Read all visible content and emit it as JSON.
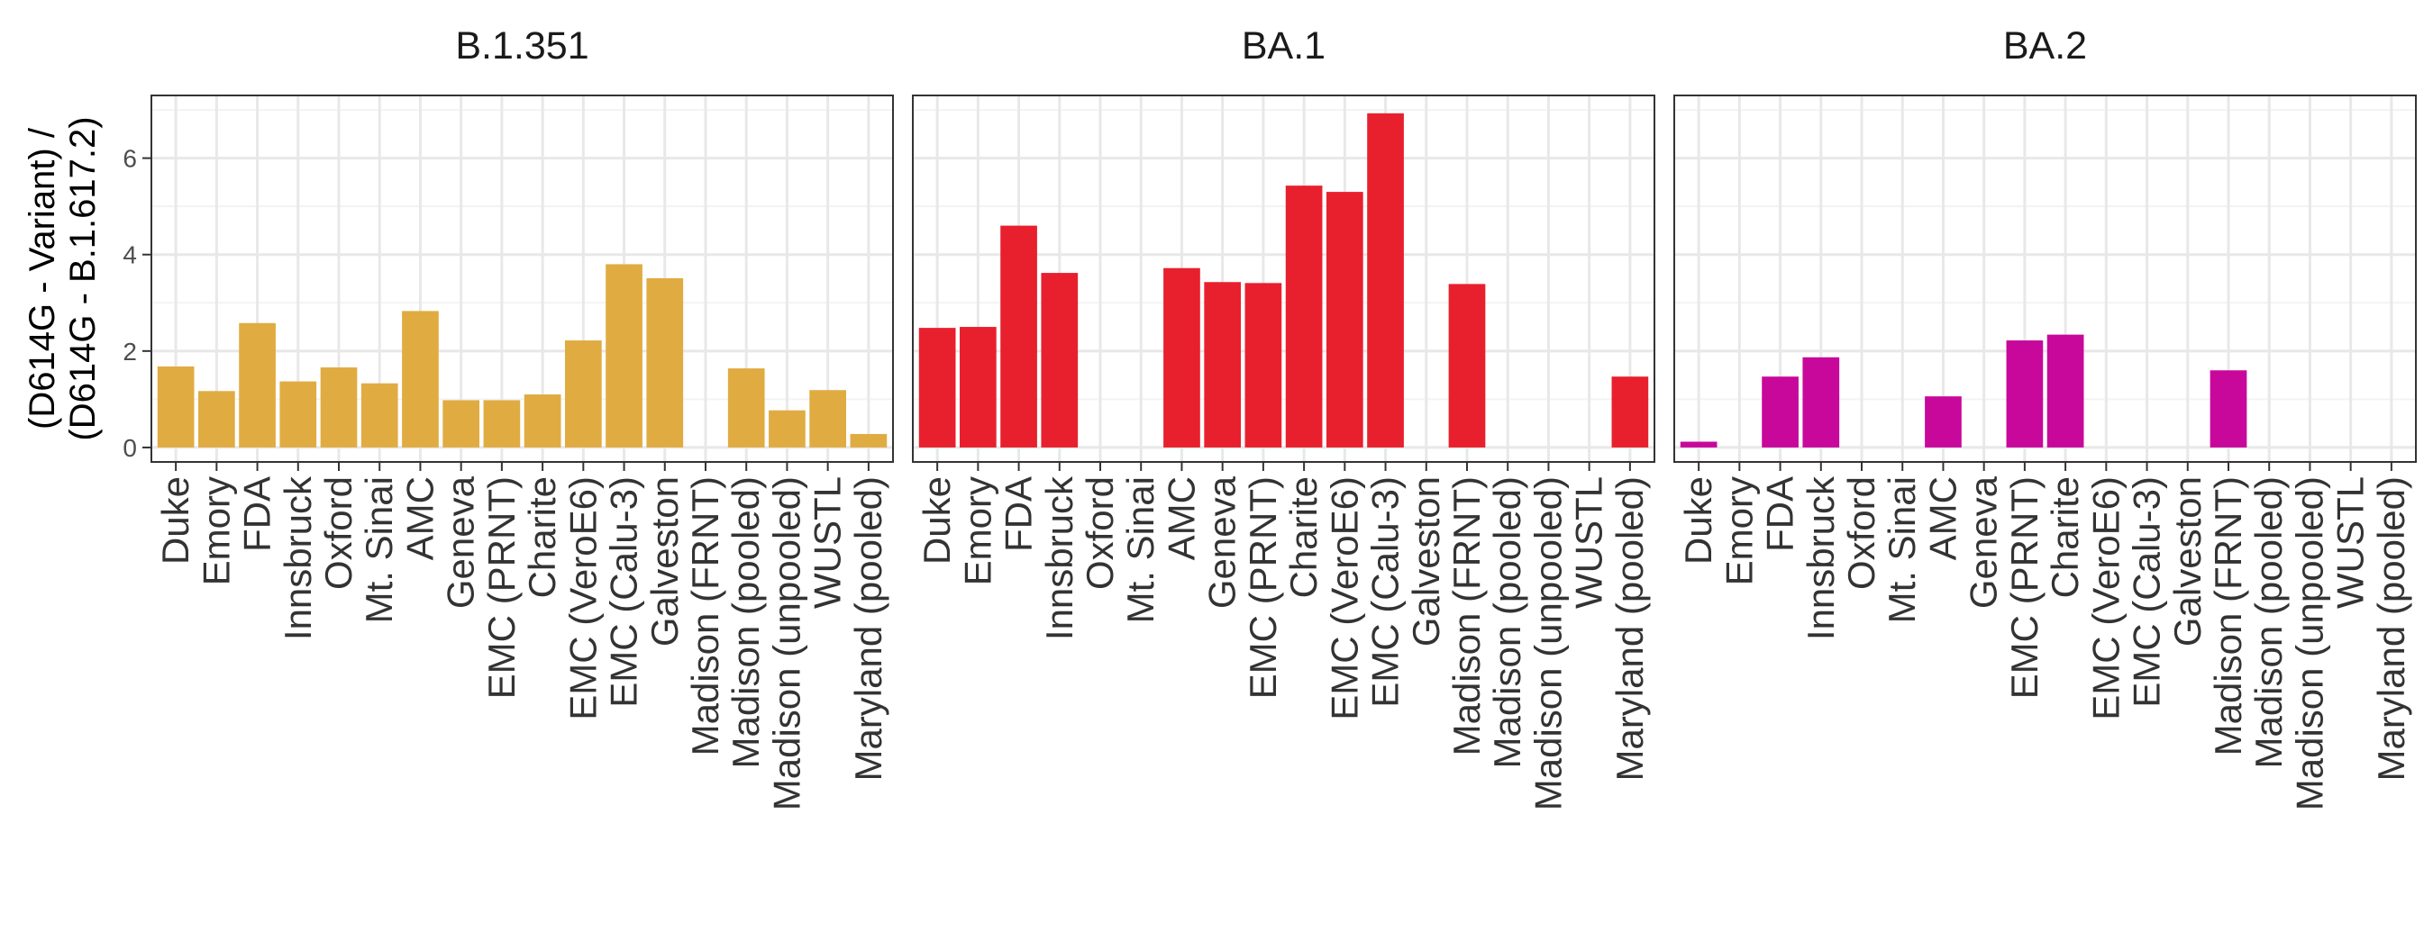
{
  "chart_data": {
    "type": "bar",
    "ylabel_lines": [
      "(D614G - Variant) /",
      "(D614G - B.1.617.2)"
    ],
    "ylim": [
      -0.3,
      7.3
    ],
    "yticks": [
      0,
      2,
      4,
      6
    ],
    "grid": true,
    "categories": [
      "Duke",
      "Emory",
      "FDA",
      "Innsbruck",
      "Oxford",
      "Mt. Sinai",
      "AMC",
      "Geneva",
      "EMC (PRNT)",
      "Charite",
      "EMC (VeroE6)",
      "EMC (Calu-3)",
      "Galveston",
      "Madison (FRNT)",
      "Madison (pooled)",
      "Madison (unpooled)",
      "WUSTL",
      "Maryland (pooled)"
    ],
    "series": [
      {
        "name": "B.1.351",
        "color": "#E0AC41",
        "values": [
          1.68,
          1.17,
          2.58,
          1.37,
          1.66,
          1.33,
          2.83,
          0.98,
          0.98,
          1.1,
          2.22,
          3.8,
          3.51,
          null,
          1.64,
          0.77,
          1.19,
          0.28
        ]
      },
      {
        "name": "BA.1",
        "color": "#E8202D",
        "values": [
          2.48,
          2.5,
          4.6,
          3.62,
          null,
          null,
          3.72,
          3.43,
          3.41,
          5.43,
          5.3,
          6.93,
          null,
          3.39,
          null,
          null,
          null,
          1.47
        ]
      },
      {
        "name": "BA.2",
        "color": "#C8089B",
        "values": [
          0.12,
          null,
          1.47,
          1.87,
          null,
          null,
          1.06,
          null,
          2.22,
          2.34,
          null,
          null,
          null,
          1.6,
          null,
          null,
          null,
          null
        ]
      }
    ]
  }
}
